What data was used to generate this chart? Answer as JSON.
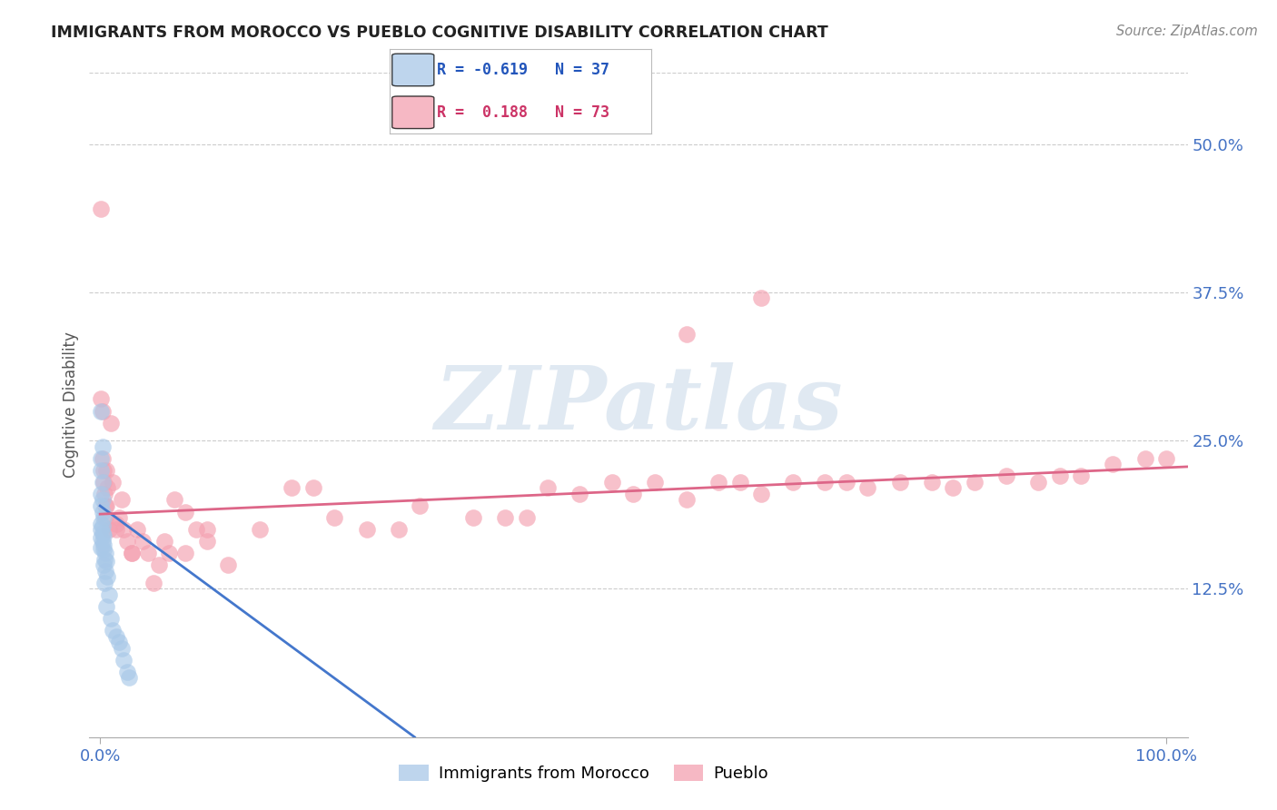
{
  "title": "IMMIGRANTS FROM MOROCCO VS PUEBLO COGNITIVE DISABILITY CORRELATION CHART",
  "source": "Source: ZipAtlas.com",
  "ylabel": "Cognitive Disability",
  "x_tick_labels": [
    "0.0%",
    "100.0%"
  ],
  "y_tick_labels": [
    "12.5%",
    "25.0%",
    "37.5%",
    "50.0%"
  ],
  "y_tick_values": [
    0.125,
    0.25,
    0.375,
    0.5
  ],
  "xlim": [
    -0.01,
    1.02
  ],
  "ylim": [
    0.0,
    0.56
  ],
  "color_blue": "#a8c8e8",
  "color_pink": "#f4a0b0",
  "color_line_blue": "#4477cc",
  "color_line_pink": "#dd6688",
  "watermark": "ZIPatlas",
  "blue_scatter_x": [
    0.001,
    0.002,
    0.001,
    0.001,
    0.002,
    0.001,
    0.002,
    0.001,
    0.002,
    0.003,
    0.001,
    0.002,
    0.001,
    0.002,
    0.003,
    0.001,
    0.002,
    0.003,
    0.001,
    0.003,
    0.005,
    0.004,
    0.006,
    0.003,
    0.005,
    0.007,
    0.004,
    0.008,
    0.006,
    0.01,
    0.012,
    0.015,
    0.018,
    0.02,
    0.022,
    0.025,
    0.027
  ],
  "blue_scatter_y": [
    0.275,
    0.245,
    0.235,
    0.225,
    0.215,
    0.205,
    0.2,
    0.195,
    0.19,
    0.185,
    0.18,
    0.178,
    0.175,
    0.172,
    0.17,
    0.168,
    0.165,
    0.162,
    0.16,
    0.158,
    0.155,
    0.15,
    0.148,
    0.145,
    0.14,
    0.135,
    0.13,
    0.12,
    0.11,
    0.1,
    0.09,
    0.085,
    0.08,
    0.075,
    0.065,
    0.055,
    0.05
  ],
  "pink_scatter_x": [
    0.001,
    0.001,
    0.002,
    0.002,
    0.003,
    0.003,
    0.004,
    0.005,
    0.005,
    0.006,
    0.007,
    0.008,
    0.01,
    0.012,
    0.015,
    0.015,
    0.018,
    0.02,
    0.022,
    0.025,
    0.03,
    0.035,
    0.04,
    0.045,
    0.05,
    0.055,
    0.06,
    0.065,
    0.07,
    0.08,
    0.09,
    0.1,
    0.12,
    0.15,
    0.18,
    0.2,
    0.22,
    0.25,
    0.28,
    0.3,
    0.35,
    0.38,
    0.4,
    0.42,
    0.45,
    0.48,
    0.5,
    0.52,
    0.55,
    0.58,
    0.6,
    0.62,
    0.65,
    0.68,
    0.7,
    0.72,
    0.75,
    0.78,
    0.8,
    0.82,
    0.85,
    0.88,
    0.9,
    0.92,
    0.95,
    0.98,
    1.0,
    0.55,
    0.62,
    0.1,
    0.08,
    0.03,
    0.006
  ],
  "pink_scatter_y": [
    0.445,
    0.285,
    0.275,
    0.235,
    0.225,
    0.215,
    0.205,
    0.195,
    0.185,
    0.195,
    0.21,
    0.175,
    0.265,
    0.215,
    0.18,
    0.175,
    0.185,
    0.2,
    0.175,
    0.165,
    0.155,
    0.175,
    0.165,
    0.155,
    0.13,
    0.145,
    0.165,
    0.155,
    0.2,
    0.19,
    0.175,
    0.165,
    0.145,
    0.175,
    0.21,
    0.21,
    0.185,
    0.175,
    0.175,
    0.195,
    0.185,
    0.185,
    0.185,
    0.21,
    0.205,
    0.215,
    0.205,
    0.215,
    0.2,
    0.215,
    0.215,
    0.205,
    0.215,
    0.215,
    0.215,
    0.21,
    0.215,
    0.215,
    0.21,
    0.215,
    0.22,
    0.215,
    0.22,
    0.22,
    0.23,
    0.235,
    0.235,
    0.34,
    0.37,
    0.175,
    0.155,
    0.155,
    0.225
  ],
  "blue_line_x0": 0.0,
  "blue_line_x1": 0.295,
  "blue_line_y0": 0.195,
  "blue_line_y1": 0.0,
  "pink_line_x0": 0.0,
  "pink_line_x1": 1.02,
  "pink_line_y0": 0.188,
  "pink_line_y1": 0.228,
  "background_color": "#ffffff",
  "grid_color": "#cccccc",
  "title_color": "#222222",
  "axis_label_color": "#4472c4",
  "watermark_color": "#c8d8e8",
  "legend_blue_text": "R = -0.619   N = 37",
  "legend_pink_text": "R =  0.188   N = 73",
  "legend_blue_label": "Immigrants from Morocco",
  "legend_pink_label": "Pueblo"
}
